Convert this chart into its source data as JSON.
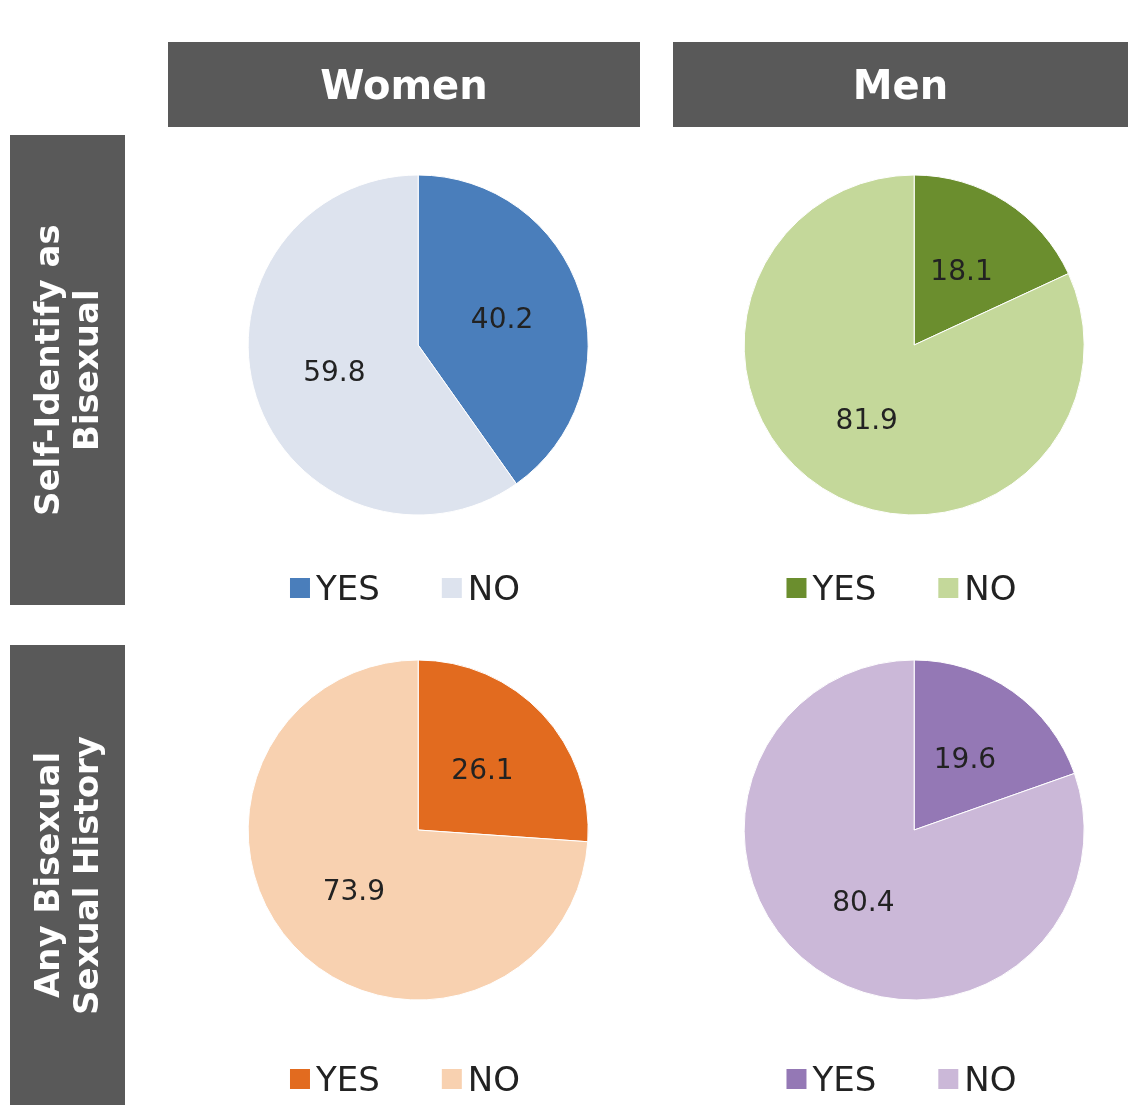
{
  "chart_data": [
    {
      "type": "pie",
      "title": "Women",
      "ylabel": "Self-Identify as Bisexual",
      "categories": [
        "YES",
        "NO"
      ],
      "values": [
        40.2,
        59.8
      ],
      "colors": [
        "#4a7ebb",
        "#dde3ee"
      ],
      "data_labels": true,
      "legend": "bottom"
    },
    {
      "type": "pie",
      "title": "Men",
      "categories": [
        "YES",
        "NO"
      ],
      "values": [
        18.1,
        81.9
      ],
      "colors": [
        "#6b8e2e",
        "#c4d89a"
      ],
      "data_labels": true,
      "legend": "bottom"
    },
    {
      "type": "pie",
      "ylabel": "Any Bisexual Sexual History",
      "categories": [
        "YES",
        "NO"
      ],
      "values": [
        26.1,
        73.9
      ],
      "colors": [
        "#e26b1f",
        "#f8d1b0"
      ],
      "data_labels": true,
      "legend": "bottom"
    },
    {
      "type": "pie",
      "categories": [
        "YES",
        "NO"
      ],
      "values": [
        19.6,
        80.4
      ],
      "colors": [
        "#9478b5",
        "#cbb8d8"
      ],
      "data_labels": true,
      "legend": "bottom"
    }
  ]
}
